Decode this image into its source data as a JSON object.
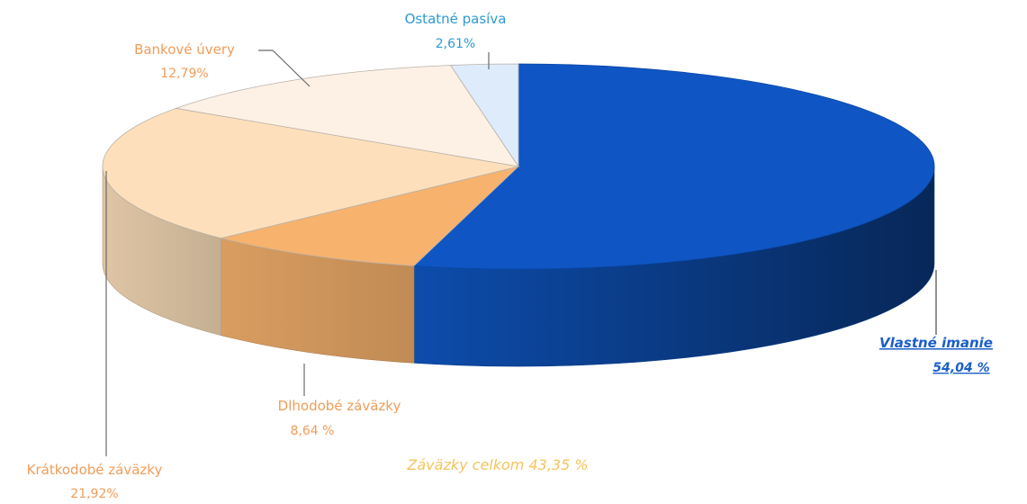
{
  "chart_data": {
    "type": "pie",
    "title": "",
    "style": "3d",
    "slices": [
      {
        "label": "Vlastné imanie",
        "value": 54.04,
        "value_text": "54,04 %",
        "color": "#0f56c4"
      },
      {
        "label": "Dlhodobé záväzky",
        "value": 8.64,
        "value_text": "8,64 %",
        "color": "#f7b26d"
      },
      {
        "label": "Krátkodobé záväzky",
        "value": 21.92,
        "value_text": "21,92%",
        "color": "#fde0bb"
      },
      {
        "label": "Bankové úvery",
        "value": 12.79,
        "value_text": "12,79%",
        "color": "#fdf0e4"
      },
      {
        "label": "Ostatné pasíva",
        "value": 2.61,
        "value_text": "2,61%",
        "color": "#deebfa"
      }
    ],
    "annotations": [
      {
        "text": "Záväzky celkom 43,35 %"
      }
    ]
  },
  "label_colors": {
    "blue_label": "#1b5ec7",
    "orange_label": "#ef9d5a",
    "cyan_label": "#2d9ad3",
    "total_label": "#f5c45c"
  }
}
